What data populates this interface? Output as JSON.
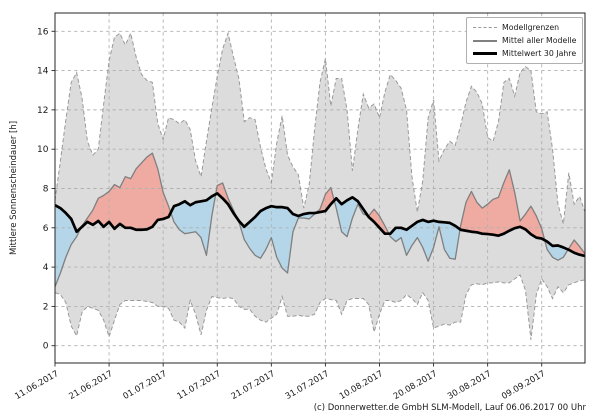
{
  "chart_data": {
    "type": "line",
    "title": "",
    "xlabel": "",
    "ylabel": "Mittlere Sonnenscheindauer [h]",
    "ylim": [
      -0.88,
      16.93
    ],
    "yticks": [
      0,
      2,
      4,
      6,
      8,
      10,
      12,
      14,
      16
    ],
    "x_range_days": [
      0,
      98
    ],
    "x_tick_days": [
      0,
      10,
      20,
      30,
      40,
      50,
      60,
      70,
      80,
      90
    ],
    "x_tick_labels": [
      "11.06.2017",
      "21.06.2017",
      "01.07.2017",
      "11.07.2017",
      "21.07.2017",
      "31.07.2017",
      "10.08.2017",
      "20.08.2017",
      "30.08.2017",
      "09.09.2017"
    ],
    "grid": true,
    "legend_position": "upper right",
    "series": [
      {
        "name": "Modellgrenzen",
        "type": "band",
        "upper": [
          7.4,
          9.4,
          11.5,
          13.4,
          13.9,
          12.6,
          10.4,
          9.7,
          10.0,
          12.3,
          14.5,
          15.7,
          15.9,
          15.3,
          15.9,
          14.7,
          13.8,
          13.5,
          13.4,
          11.3,
          10.5,
          11.6,
          11.5,
          11.3,
          11.5,
          11.0,
          9.4,
          8.6,
          10.4,
          12.1,
          13.7,
          15.1,
          15.9,
          14.7,
          13.6,
          11.4,
          11.6,
          11.5,
          10.1,
          9.0,
          8.3,
          10.3,
          11.7,
          9.7,
          9.1,
          8.7,
          7.0,
          8.2,
          11.0,
          13.4,
          14.6,
          12.2,
          13.6,
          13.6,
          12.0,
          8.9,
          11.0,
          12.8,
          12.1,
          12.3,
          11.6,
          12.9,
          13.8,
          13.5,
          13.1,
          12.0,
          8.6,
          6.8,
          8.4,
          11.6,
          12.5,
          9.4,
          10.0,
          10.4,
          10.2,
          11.2,
          12.4,
          13.2,
          12.9,
          12.3,
          10.6,
          10.4,
          11.4,
          13.4,
          13.6,
          12.7,
          13.9,
          14.2,
          14.0,
          11.9,
          11.8,
          11.9,
          10.0,
          7.2,
          6.2,
          8.8,
          7.2,
          7.6,
          6.8
        ],
        "lower": [
          2.7,
          2.6,
          2.2,
          1.0,
          0.5,
          1.7,
          2.0,
          1.9,
          1.8,
          1.3,
          0.45,
          1.3,
          2.1,
          2.3,
          2.3,
          2.3,
          2.3,
          2.25,
          2.2,
          2.0,
          2.0,
          1.9,
          1.3,
          1.2,
          0.9,
          2.3,
          1.6,
          0.55,
          1.8,
          2.5,
          2.45,
          2.4,
          2.45,
          2.4,
          2.0,
          1.85,
          1.85,
          1.5,
          1.3,
          1.2,
          1.4,
          1.6,
          2.5,
          1.5,
          1.5,
          1.55,
          1.5,
          1.5,
          1.6,
          2.2,
          2.4,
          2.35,
          2.3,
          1.6,
          2.3,
          2.4,
          2.4,
          2.4,
          2.1,
          0.7,
          1.6,
          2.3,
          2.3,
          2.2,
          2.3,
          2.6,
          2.4,
          2.1,
          2.7,
          2.3,
          0.9,
          1.0,
          1.1,
          1.05,
          1.2,
          1.2,
          2.6,
          3.1,
          3.15,
          3.1,
          3.2,
          3.2,
          3.25,
          3.2,
          3.2,
          3.4,
          3.6,
          2.8,
          0.3,
          2.6,
          3.4,
          3.0,
          2.4,
          3.0,
          2.7,
          3.1,
          3.2,
          3.3,
          3.35
        ]
      },
      {
        "name": "Mittel aller Modelle",
        "type": "line",
        "values": [
          3.0,
          3.7,
          4.5,
          5.15,
          5.55,
          6.1,
          6.5,
          6.9,
          7.5,
          7.65,
          7.85,
          8.2,
          8.05,
          8.6,
          8.5,
          9.0,
          9.3,
          9.6,
          9.8,
          9.0,
          7.8,
          7.1,
          6.3,
          5.9,
          5.7,
          5.75,
          5.8,
          5.5,
          4.6,
          6.6,
          8.15,
          8.28,
          7.5,
          6.9,
          6.3,
          5.4,
          4.95,
          4.6,
          4.45,
          4.9,
          5.5,
          4.5,
          3.95,
          3.7,
          5.8,
          6.5,
          6.5,
          6.45,
          6.7,
          6.95,
          7.7,
          8.05,
          7.0,
          5.8,
          5.55,
          6.5,
          7.2,
          6.7,
          6.6,
          6.95,
          6.6,
          6.1,
          5.55,
          5.3,
          5.5,
          4.6,
          5.1,
          5.5,
          5.0,
          4.3,
          5.0,
          6.05,
          4.9,
          4.45,
          4.4,
          6.1,
          7.3,
          7.85,
          7.3,
          7.0,
          7.2,
          7.45,
          7.55,
          8.3,
          8.95,
          7.8,
          6.35,
          6.7,
          7.1,
          6.6,
          5.95,
          4.9,
          4.5,
          4.35,
          4.5,
          4.95,
          5.38,
          5.05,
          4.68
        ]
      },
      {
        "name": "Mittelwert 30 Jahre",
        "type": "line",
        "values": [
          7.15,
          7.0,
          6.75,
          6.45,
          5.8,
          6.05,
          6.3,
          6.15,
          6.35,
          6.05,
          6.3,
          5.95,
          6.2,
          6.0,
          6.0,
          5.9,
          5.9,
          5.92,
          6.05,
          6.4,
          6.45,
          6.55,
          7.1,
          7.2,
          7.35,
          7.15,
          7.3,
          7.35,
          7.4,
          7.6,
          7.75,
          7.5,
          7.2,
          6.75,
          6.35,
          6.05,
          6.3,
          6.55,
          6.85,
          7.0,
          7.1,
          7.05,
          7.05,
          7.0,
          6.7,
          6.6,
          6.7,
          6.75,
          6.75,
          6.8,
          6.85,
          7.2,
          7.5,
          7.2,
          7.4,
          7.55,
          7.35,
          6.95,
          6.55,
          6.3,
          6.0,
          5.7,
          5.7,
          6.0,
          6.0,
          5.9,
          6.1,
          6.3,
          6.4,
          6.3,
          6.36,
          6.3,
          6.28,
          6.25,
          6.1,
          5.9,
          5.85,
          5.8,
          5.77,
          5.7,
          5.68,
          5.65,
          5.6,
          5.7,
          5.85,
          5.98,
          6.05,
          5.92,
          5.67,
          5.5,
          5.45,
          5.3,
          5.08,
          5.1,
          5.0,
          4.88,
          4.73,
          4.63,
          4.57
        ]
      }
    ],
    "colors": {
      "band_fill": "#dcdcdc",
      "band_edge": "#999999",
      "model_line": "#7f7f7f",
      "mean30_line": "#000000",
      "above_fill": "#efaba2",
      "below_fill": "#b5d6e8",
      "grid": "#b0b0b0",
      "spine": "#262626"
    }
  },
  "legend": {
    "items": [
      {
        "label": "Modellgrenzen",
        "style": "dashed-gray"
      },
      {
        "label": "Mittel aller Modelle",
        "style": "solid-gray"
      },
      {
        "label": "Mittelwert 30 Jahre",
        "style": "solid-black-thick"
      }
    ]
  },
  "footer": {
    "copyright": "(c) Donnerwetter.de GmbH SLM-Modell, Lauf 06.06.2017 00 Uhr"
  }
}
